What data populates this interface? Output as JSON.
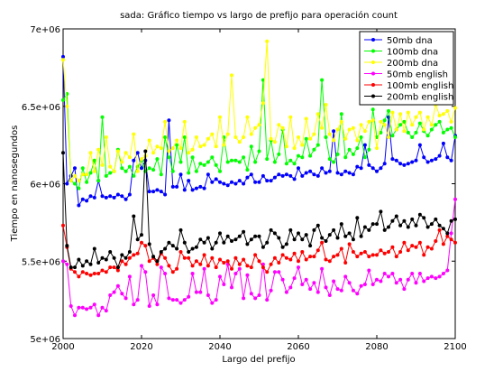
{
  "chart_data": {
    "type": "line",
    "title": "sada: Gráfico tiempo vs largo de prefijo para operación count",
    "xlabel": "Largo del prefijo",
    "ylabel": "Tiempo en nanosegundos",
    "xlim": [
      2000,
      2100
    ],
    "ylim": [
      5000000,
      7000000
    ],
    "x_ticks": [
      2000,
      2020,
      2040,
      2060,
      2080,
      2100
    ],
    "x_tick_labels": [
      "2000",
      "2020",
      "2040",
      "2060",
      "2080",
      "2100"
    ],
    "y_ticks": [
      5000000,
      5500000,
      6000000,
      6500000,
      7000000
    ],
    "y_tick_labels": [
      "5e+06",
      "5.5e+06",
      "6e+06",
      "6.5e+06",
      "7e+06"
    ],
    "grid": false,
    "legend_position": "top-right",
    "x": [
      2000,
      2001,
      2002,
      2003,
      2004,
      2005,
      2006,
      2007,
      2008,
      2009,
      2010,
      2011,
      2012,
      2013,
      2014,
      2015,
      2016,
      2017,
      2018,
      2019,
      2020,
      2021,
      2022,
      2023,
      2024,
      2025,
      2026,
      2027,
      2028,
      2029,
      2030,
      2031,
      2032,
      2033,
      2034,
      2035,
      2036,
      2037,
      2038,
      2039,
      2040,
      2041,
      2042,
      2043,
      2044,
      2045,
      2046,
      2047,
      2048,
      2049,
      2050,
      2051,
      2052,
      2053,
      2054,
      2055,
      2056,
      2057,
      2058,
      2059,
      2060,
      2061,
      2062,
      2063,
      2064,
      2065,
      2066,
      2067,
      2068,
      2069,
      2070,
      2071,
      2072,
      2073,
      2074,
      2075,
      2076,
      2077,
      2078,
      2079,
      2080,
      2081,
      2082,
      2083,
      2084,
      2085,
      2086,
      2087,
      2088,
      2089,
      2090,
      2091,
      2092,
      2093,
      2094,
      2095,
      2096,
      2097,
      2098,
      2099,
      2100
    ],
    "series": [
      {
        "name": "50mb dna",
        "color": "#0000ff",
        "values": [
          6820000,
          6000000,
          6050000,
          6100000,
          5860000,
          5900000,
          5890000,
          5920000,
          5910000,
          6020000,
          5920000,
          5910000,
          5920000,
          5910000,
          5930000,
          5920000,
          5900000,
          5930000,
          6150000,
          6200000,
          6100000,
          6150000,
          5950000,
          5950000,
          5960000,
          5950000,
          5930000,
          6410000,
          5980000,
          5980000,
          6060000,
          5960000,
          6020000,
          5960000,
          5970000,
          5980000,
          5970000,
          6060000,
          6010000,
          6030000,
          6010000,
          6000000,
          5990000,
          6010000,
          6000000,
          6020000,
          6000000,
          6040000,
          6060000,
          6010000,
          6010000,
          6050000,
          6020000,
          6020000,
          6040000,
          6060000,
          6050000,
          6060000,
          6050000,
          6030000,
          6100000,
          6050000,
          6070000,
          6080000,
          6060000,
          6050000,
          6100000,
          6070000,
          6080000,
          6340000,
          6070000,
          6060000,
          6080000,
          6070000,
          6060000,
          6110000,
          6100000,
          6250000,
          6120000,
          6100000,
          6080000,
          6100000,
          6130000,
          6430000,
          6160000,
          6150000,
          6130000,
          6120000,
          6130000,
          6140000,
          6150000,
          6250000,
          6170000,
          6140000,
          6150000,
          6160000,
          6180000,
          6260000,
          6170000,
          6150000,
          6310000
        ]
      },
      {
        "name": "100mb dna",
        "color": "#00ff00",
        "values": [
          6540000,
          6580000,
          6020000,
          6000000,
          5970000,
          6100000,
          6010000,
          6070000,
          6150000,
          6020000,
          6430000,
          6050000,
          6070000,
          6080000,
          6220000,
          6100000,
          6080000,
          6110000,
          6050000,
          6110000,
          6150000,
          6080000,
          6100000,
          6090000,
          6160000,
          6060000,
          6300000,
          6170000,
          6080000,
          6250000,
          6140000,
          6300000,
          6070000,
          6170000,
          6080000,
          6130000,
          6120000,
          6140000,
          6170000,
          6120000,
          6080000,
          6300000,
          6140000,
          6150000,
          6150000,
          6140000,
          6170000,
          6090000,
          6240000,
          6140000,
          6210000,
          6670000,
          6160000,
          6280000,
          6140000,
          6190000,
          6350000,
          6130000,
          6150000,
          6130000,
          6180000,
          6170000,
          6290000,
          6180000,
          6220000,
          6250000,
          6670000,
          6300000,
          6160000,
          6140000,
          6190000,
          6450000,
          6170000,
          6220000,
          6190000,
          6230000,
          6300000,
          6170000,
          6220000,
          6480000,
          6300000,
          6330000,
          6410000,
          6470000,
          6310000,
          6350000,
          6380000,
          6400000,
          6330000,
          6300000,
          6330000,
          6390000,
          6340000,
          6310000,
          6350000,
          6380000,
          6400000,
          6330000,
          6350000,
          6360000,
          6300000
        ]
      },
      {
        "name": "200mb dna",
        "color": "#ffff00",
        "values": [
          6800000,
          6500000,
          6020000,
          6050000,
          6020000,
          6060000,
          6060000,
          6200000,
          6080000,
          6220000,
          6120000,
          6300000,
          6110000,
          6080000,
          6210000,
          6140000,
          6200000,
          6170000,
          6320000,
          6080000,
          6160000,
          6180000,
          6280000,
          6200000,
          6240000,
          6230000,
          6400000,
          6210000,
          6230000,
          6280000,
          6230000,
          6400000,
          6200000,
          6220000,
          6300000,
          6240000,
          6250000,
          6290000,
          6320000,
          6240000,
          6430000,
          6250000,
          6320000,
          6700000,
          6300000,
          6270000,
          6300000,
          6430000,
          6320000,
          6360000,
          6380000,
          6520000,
          6920000,
          6290000,
          6270000,
          6380000,
          6360000,
          6240000,
          6430000,
          6230000,
          6300000,
          6250000,
          6420000,
          6290000,
          6320000,
          6450000,
          6360000,
          6510000,
          6320000,
          6280000,
          6350000,
          6400000,
          6290000,
          6350000,
          6360000,
          6280000,
          6380000,
          6340000,
          6400000,
          6410000,
          6230000,
          6400000,
          6380000,
          6300000,
          6460000,
          6350000,
          6450000,
          6340000,
          6460000,
          6380000,
          6430000,
          6460000,
          6350000,
          6430000,
          6380000,
          6510000,
          6440000,
          6450000,
          6470000,
          6400000,
          6490000
        ]
      },
      {
        "name": "50mb english",
        "color": "#ff00ff",
        "values": [
          5500000,
          5480000,
          5210000,
          5150000,
          5200000,
          5200000,
          5190000,
          5200000,
          5220000,
          5150000,
          5200000,
          5180000,
          5280000,
          5300000,
          5340000,
          5290000,
          5260000,
          5400000,
          5220000,
          5250000,
          5470000,
          5430000,
          5210000,
          5280000,
          5220000,
          5460000,
          5420000,
          5260000,
          5250000,
          5250000,
          5230000,
          5250000,
          5270000,
          5420000,
          5300000,
          5300000,
          5450000,
          5280000,
          5230000,
          5250000,
          5400000,
          5350000,
          5480000,
          5330000,
          5420000,
          5450000,
          5260000,
          5410000,
          5290000,
          5260000,
          5280000,
          5480000,
          5250000,
          5310000,
          5430000,
          5430000,
          5380000,
          5300000,
          5330000,
          5390000,
          5460000,
          5350000,
          5380000,
          5320000,
          5360000,
          5300000,
          5450000,
          5330000,
          5280000,
          5370000,
          5320000,
          5310000,
          5400000,
          5360000,
          5310000,
          5290000,
          5340000,
          5350000,
          5440000,
          5350000,
          5380000,
          5370000,
          5420000,
          5400000,
          5420000,
          5360000,
          5380000,
          5320000,
          5380000,
          5420000,
          5360000,
          5420000,
          5370000,
          5390000,
          5400000,
          5390000,
          5400000,
          5420000,
          5440000,
          5680000,
          5900000
        ]
      },
      {
        "name": "100mb english",
        "color": "#ff0000",
        "values": [
          5730000,
          5590000,
          5450000,
          5430000,
          5400000,
          5430000,
          5420000,
          5410000,
          5420000,
          5420000,
          5440000,
          5430000,
          5460000,
          5460000,
          5440000,
          5500000,
          5480000,
          5520000,
          5540000,
          5550000,
          5620000,
          5600000,
          5500000,
          5520000,
          5480000,
          5550000,
          5520000,
          5470000,
          5430000,
          5450000,
          5560000,
          5520000,
          5520000,
          5470000,
          5500000,
          5480000,
          5540000,
          5470000,
          5520000,
          5460000,
          5510000,
          5490000,
          5500000,
          5450000,
          5520000,
          5480000,
          5510000,
          5470000,
          5460000,
          5540000,
          5500000,
          5460000,
          5430000,
          5480000,
          5520000,
          5490000,
          5540000,
          5520000,
          5510000,
          5550000,
          5500000,
          5560000,
          5510000,
          5530000,
          5530000,
          5570000,
          5620000,
          5510000,
          5500000,
          5530000,
          5540000,
          5580000,
          5490000,
          5610000,
          5560000,
          5530000,
          5550000,
          5560000,
          5530000,
          5540000,
          5540000,
          5570000,
          5550000,
          5560000,
          5590000,
          5530000,
          5560000,
          5620000,
          5570000,
          5600000,
          5590000,
          5620000,
          5540000,
          5590000,
          5580000,
          5630000,
          5700000,
          5610000,
          5660000,
          5640000,
          5620000
        ]
      },
      {
        "name": "200mb english",
        "color": "#000000",
        "values": [
          6200000,
          5600000,
          5460000,
          5460000,
          5510000,
          5470000,
          5500000,
          5480000,
          5580000,
          5490000,
          5520000,
          5510000,
          5560000,
          5520000,
          5460000,
          5540000,
          5520000,
          5560000,
          5790000,
          5640000,
          5670000,
          6210000,
          5610000,
          5530000,
          5500000,
          5560000,
          5580000,
          5620000,
          5600000,
          5580000,
          5700000,
          5620000,
          5560000,
          5580000,
          5590000,
          5640000,
          5620000,
          5650000,
          5580000,
          5620000,
          5680000,
          5620000,
          5660000,
          5630000,
          5640000,
          5660000,
          5690000,
          5610000,
          5640000,
          5660000,
          5660000,
          5590000,
          5620000,
          5700000,
          5680000,
          5650000,
          5590000,
          5610000,
          5700000,
          5640000,
          5680000,
          5640000,
          5670000,
          5600000,
          5700000,
          5730000,
          5650000,
          5630000,
          5670000,
          5700000,
          5650000,
          5740000,
          5660000,
          5680000,
          5640000,
          5780000,
          5660000,
          5720000,
          5700000,
          5740000,
          5740000,
          5820000,
          5700000,
          5720000,
          5760000,
          5790000,
          5730000,
          5760000,
          5720000,
          5770000,
          5730000,
          5800000,
          5780000,
          5720000,
          5740000,
          5770000,
          5730000,
          5710000,
          5680000,
          5760000,
          5770000
        ]
      }
    ]
  }
}
